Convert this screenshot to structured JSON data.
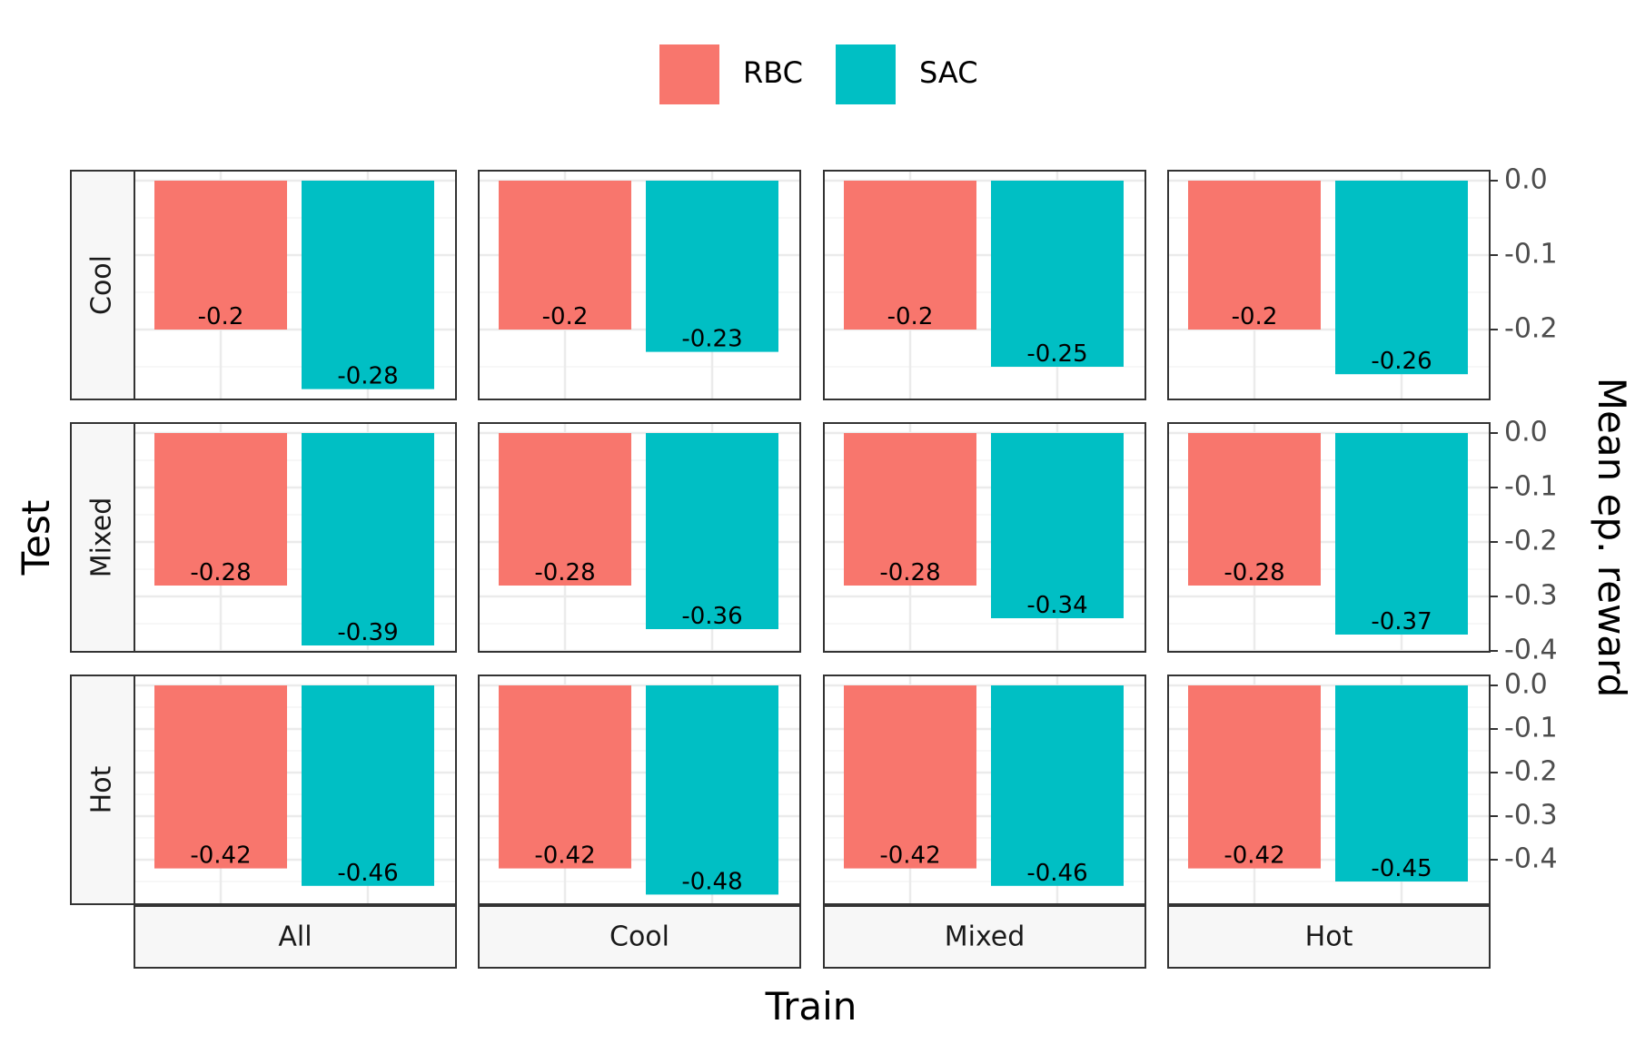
{
  "chart_data": {
    "type": "bar",
    "title": "",
    "xlabel": "Train",
    "ylabel": "Mean ep. reward",
    "row_label": "Test",
    "legend_position": "top",
    "grid": true,
    "facet_columns": [
      "All",
      "Cool",
      "Mixed",
      "Hot"
    ],
    "facet_rows": [
      {
        "name": "Cool",
        "ylim": [
          -0.3,
          0.0
        ],
        "ticks": [
          {
            "value": 0.0,
            "label": "0.0"
          },
          {
            "value": -0.1,
            "label": "-0.1"
          },
          {
            "value": -0.2,
            "label": "-0.2"
          }
        ]
      },
      {
        "name": "Mixed",
        "ylim": [
          -0.42,
          0.0
        ],
        "ticks": [
          {
            "value": 0.0,
            "label": "0.0"
          },
          {
            "value": -0.1,
            "label": "-0.1"
          },
          {
            "value": -0.2,
            "label": "-0.2"
          },
          {
            "value": -0.3,
            "label": "-0.3"
          },
          {
            "value": -0.4,
            "label": "-0.4"
          }
        ]
      },
      {
        "name": "Hot",
        "ylim": [
          -0.5,
          0.0
        ],
        "ticks": [
          {
            "value": 0.0,
            "label": "0.0"
          },
          {
            "value": -0.1,
            "label": "-0.1"
          },
          {
            "value": -0.2,
            "label": "-0.2"
          },
          {
            "value": -0.3,
            "label": "-0.3"
          },
          {
            "value": -0.4,
            "label": "-0.4"
          }
        ]
      }
    ],
    "series": [
      {
        "name": "RBC",
        "color": "#F8766D"
      },
      {
        "name": "SAC",
        "color": "#00BFC4"
      }
    ],
    "values": {
      "Cool": {
        "All": [
          -0.2,
          -0.28
        ],
        "Cool": [
          -0.2,
          -0.23
        ],
        "Mixed": [
          -0.2,
          -0.25
        ],
        "Hot": [
          -0.2,
          -0.26
        ]
      },
      "Mixed": {
        "All": [
          -0.28,
          -0.39
        ],
        "Cool": [
          -0.28,
          -0.36
        ],
        "Mixed": [
          -0.28,
          -0.34
        ],
        "Hot": [
          -0.28,
          -0.37
        ]
      },
      "Hot": {
        "All": [
          -0.42,
          -0.46
        ],
        "Cool": [
          -0.42,
          -0.48
        ],
        "Mixed": [
          -0.42,
          -0.46
        ],
        "Hot": [
          -0.42,
          -0.45
        ]
      }
    }
  }
}
